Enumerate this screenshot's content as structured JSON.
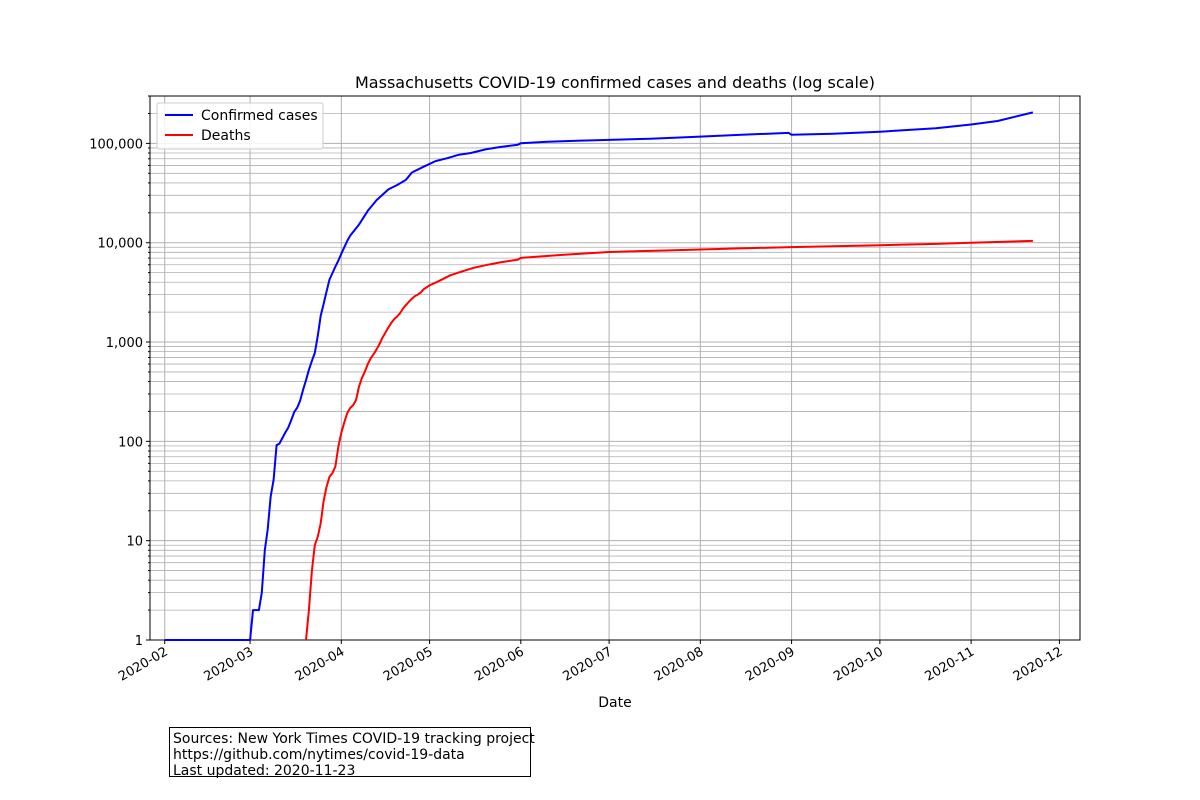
{
  "chart_data": {
    "type": "line",
    "title": "Massachusetts COVID-19 confirmed cases and deaths (log scale)",
    "xlabel": "Date",
    "ylabel": "",
    "yscale": "log",
    "xlim": [
      "2020-01-27",
      "2020-12-08"
    ],
    "ylim": [
      1,
      300000
    ],
    "grid": true,
    "legend_position": "top-left",
    "x_ticks": [
      "2020-02",
      "2020-03",
      "2020-04",
      "2020-05",
      "2020-06",
      "2020-07",
      "2020-08",
      "2020-09",
      "2020-10",
      "2020-11",
      "2020-12"
    ],
    "y_ticks": [
      {
        "value": 1,
        "label": "1"
      },
      {
        "value": 10,
        "label": "10"
      },
      {
        "value": 100,
        "label": "100"
      },
      {
        "value": 1000,
        "label": "1,000"
      },
      {
        "value": 10000,
        "label": "10,000"
      },
      {
        "value": 100000,
        "label": "100,000"
      }
    ],
    "series": [
      {
        "name": "Confirmed cases",
        "color": "#0000ff",
        "points": [
          [
            "2020-02-01",
            1
          ],
          [
            "2020-03-01",
            1
          ],
          [
            "2020-03-02",
            2
          ],
          [
            "2020-03-04",
            2
          ],
          [
            "2020-03-05",
            3
          ],
          [
            "2020-03-06",
            8
          ],
          [
            "2020-03-07",
            13
          ],
          [
            "2020-03-08",
            28
          ],
          [
            "2020-03-09",
            41
          ],
          [
            "2020-03-10",
            92
          ],
          [
            "2020-03-11",
            95
          ],
          [
            "2020-03-12",
            108
          ],
          [
            "2020-03-13",
            123
          ],
          [
            "2020-03-14",
            138
          ],
          [
            "2020-03-15",
            164
          ],
          [
            "2020-03-16",
            197
          ],
          [
            "2020-03-17",
            218
          ],
          [
            "2020-03-18",
            256
          ],
          [
            "2020-03-19",
            328
          ],
          [
            "2020-03-20",
            413
          ],
          [
            "2020-03-21",
            525
          ],
          [
            "2020-03-22",
            646
          ],
          [
            "2020-03-23",
            777
          ],
          [
            "2020-03-24",
            1159
          ],
          [
            "2020-03-25",
            1838
          ],
          [
            "2020-03-26",
            2417
          ],
          [
            "2020-03-27",
            3240
          ],
          [
            "2020-03-28",
            4257
          ],
          [
            "2020-03-29",
            4955
          ],
          [
            "2020-03-30",
            5752
          ],
          [
            "2020-03-31",
            6620
          ],
          [
            "2020-04-01",
            7738
          ],
          [
            "2020-04-02",
            8966
          ],
          [
            "2020-04-03",
            10402
          ],
          [
            "2020-04-04",
            11736
          ],
          [
            "2020-04-07",
            15202
          ],
          [
            "2020-04-10",
            20974
          ],
          [
            "2020-04-13",
            26867
          ],
          [
            "2020-04-17",
            34402
          ],
          [
            "2020-04-20",
            38077
          ],
          [
            "2020-04-23",
            42944
          ],
          [
            "2020-04-25",
            50969
          ],
          [
            "2020-04-29",
            58302
          ],
          [
            "2020-05-03",
            66263
          ],
          [
            "2020-05-07",
            71000
          ],
          [
            "2020-05-11",
            77000
          ],
          [
            "2020-05-15",
            80000
          ],
          [
            "2020-05-20",
            87000
          ],
          [
            "2020-05-25",
            92000
          ],
          [
            "2020-05-31",
            97000
          ],
          [
            "2020-06-01",
            100500
          ],
          [
            "2020-06-10",
            104000
          ],
          [
            "2020-06-20",
            106500
          ],
          [
            "2020-07-01",
            108500
          ],
          [
            "2020-07-15",
            111500
          ],
          [
            "2020-08-01",
            117000
          ],
          [
            "2020-08-15",
            122000
          ],
          [
            "2020-08-31",
            127500
          ],
          [
            "2020-09-01",
            122000
          ],
          [
            "2020-09-15",
            125000
          ],
          [
            "2020-10-01",
            131000
          ],
          [
            "2020-10-20",
            142000
          ],
          [
            "2020-11-01",
            155000
          ],
          [
            "2020-11-10",
            168000
          ],
          [
            "2020-11-22",
            205000
          ]
        ]
      },
      {
        "name": "Deaths",
        "color": "#ff0000",
        "points": [
          [
            "2020-03-20",
            1
          ],
          [
            "2020-03-21",
            2
          ],
          [
            "2020-03-22",
            5
          ],
          [
            "2020-03-23",
            9
          ],
          [
            "2020-03-24",
            11
          ],
          [
            "2020-03-25",
            15
          ],
          [
            "2020-03-26",
            25
          ],
          [
            "2020-03-27",
            35
          ],
          [
            "2020-03-28",
            44
          ],
          [
            "2020-03-29",
            48
          ],
          [
            "2020-03-30",
            56
          ],
          [
            "2020-03-31",
            89
          ],
          [
            "2020-04-01",
            122
          ],
          [
            "2020-04-02",
            154
          ],
          [
            "2020-04-03",
            192
          ],
          [
            "2020-04-04",
            216
          ],
          [
            "2020-04-05",
            231
          ],
          [
            "2020-04-06",
            260
          ],
          [
            "2020-04-07",
            356
          ],
          [
            "2020-04-08",
            433
          ],
          [
            "2020-04-09",
            503
          ],
          [
            "2020-04-10",
            599
          ],
          [
            "2020-04-11",
            686
          ],
          [
            "2020-04-12",
            756
          ],
          [
            "2020-04-13",
            844
          ],
          [
            "2020-04-14",
            957
          ],
          [
            "2020-04-15",
            1108
          ],
          [
            "2020-04-16",
            1245
          ],
          [
            "2020-04-17",
            1404
          ],
          [
            "2020-04-18",
            1560
          ],
          [
            "2020-04-19",
            1706
          ],
          [
            "2020-04-20",
            1809
          ],
          [
            "2020-04-21",
            1961
          ],
          [
            "2020-04-22",
            2182
          ],
          [
            "2020-04-23",
            2360
          ],
          [
            "2020-04-24",
            2556
          ],
          [
            "2020-04-25",
            2730
          ],
          [
            "2020-04-26",
            2899
          ],
          [
            "2020-04-27",
            3003
          ],
          [
            "2020-04-28",
            3153
          ],
          [
            "2020-04-29",
            3405
          ],
          [
            "2020-05-01",
            3716
          ],
          [
            "2020-05-04",
            4090
          ],
          [
            "2020-05-08",
            4702
          ],
          [
            "2020-05-12",
            5141
          ],
          [
            "2020-05-16",
            5592
          ],
          [
            "2020-05-20",
            5938
          ],
          [
            "2020-05-25",
            6340
          ],
          [
            "2020-05-31",
            6768
          ],
          [
            "2020-06-01",
            7035
          ],
          [
            "2020-06-15",
            7538
          ],
          [
            "2020-07-01",
            8054
          ],
          [
            "2020-07-20",
            8350
          ],
          [
            "2020-08-10",
            8700
          ],
          [
            "2020-09-01",
            9025
          ],
          [
            "2020-10-01",
            9450
          ],
          [
            "2020-10-20",
            9720
          ],
          [
            "2020-11-01",
            10000
          ],
          [
            "2020-11-22",
            10420
          ]
        ]
      }
    ]
  },
  "source_box": {
    "line1": "Sources: New York Times COVID-19 tracking project",
    "line2": "https://github.com/nytimes/covid-19-data",
    "line3": "Last updated: 2020-11-23"
  }
}
